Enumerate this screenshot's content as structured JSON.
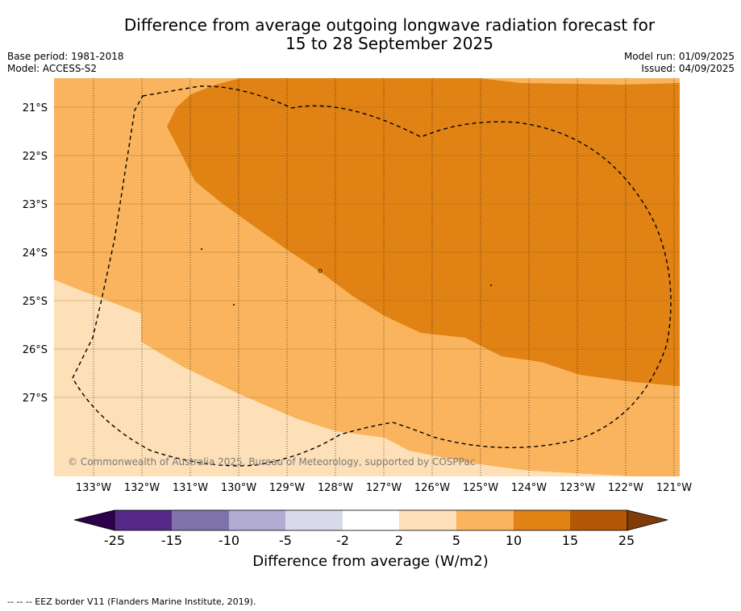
{
  "header": {
    "title_line1": "Difference from average outgoing longwave radiation forecast for",
    "title_line2": "15 to 28 September 2025",
    "base_period": "Base period: 1981-2018",
    "model": "Model: ACCESS-S2",
    "model_run": "Model run: 01/09/2025",
    "issued": "Issued: 04/09/2025"
  },
  "map": {
    "lat_labels": [
      "21°S",
      "22°S",
      "23°S",
      "24°S",
      "25°S",
      "26°S",
      "27°S"
    ],
    "lon_labels": [
      "133°W",
      "132°W",
      "131°W",
      "130°W",
      "129°W",
      "128°W",
      "127°W",
      "126°W",
      "125°W",
      "124°W",
      "123°W",
      "122°W",
      "121°W"
    ],
    "copyright": "© Commonwealth of Australia 2025, Bureau of Meteorology, supported by COSPPac",
    "zone_colors": {
      "2_to_5": "#fde0b7",
      "5_to_10": "#f9b45d",
      "10_to_15": "#e08214"
    },
    "border_style": "dashed"
  },
  "colorbar": {
    "ticks": [
      "-25",
      "-15",
      "-10",
      "-5",
      "-2",
      "2",
      "5",
      "10",
      "15",
      "25"
    ],
    "colors": [
      "#2d004b",
      "#542788",
      "#8073ac",
      "#b2abd2",
      "#d8daeb",
      "#ffffff",
      "#fde0b7",
      "#f9b45d",
      "#e08214",
      "#b35806",
      "#7f3b08"
    ],
    "label": "Difference from average (W/m2)"
  },
  "footnote": "--  --  -- EEZ border V11 (Flanders Marine Institute, 2019)."
}
